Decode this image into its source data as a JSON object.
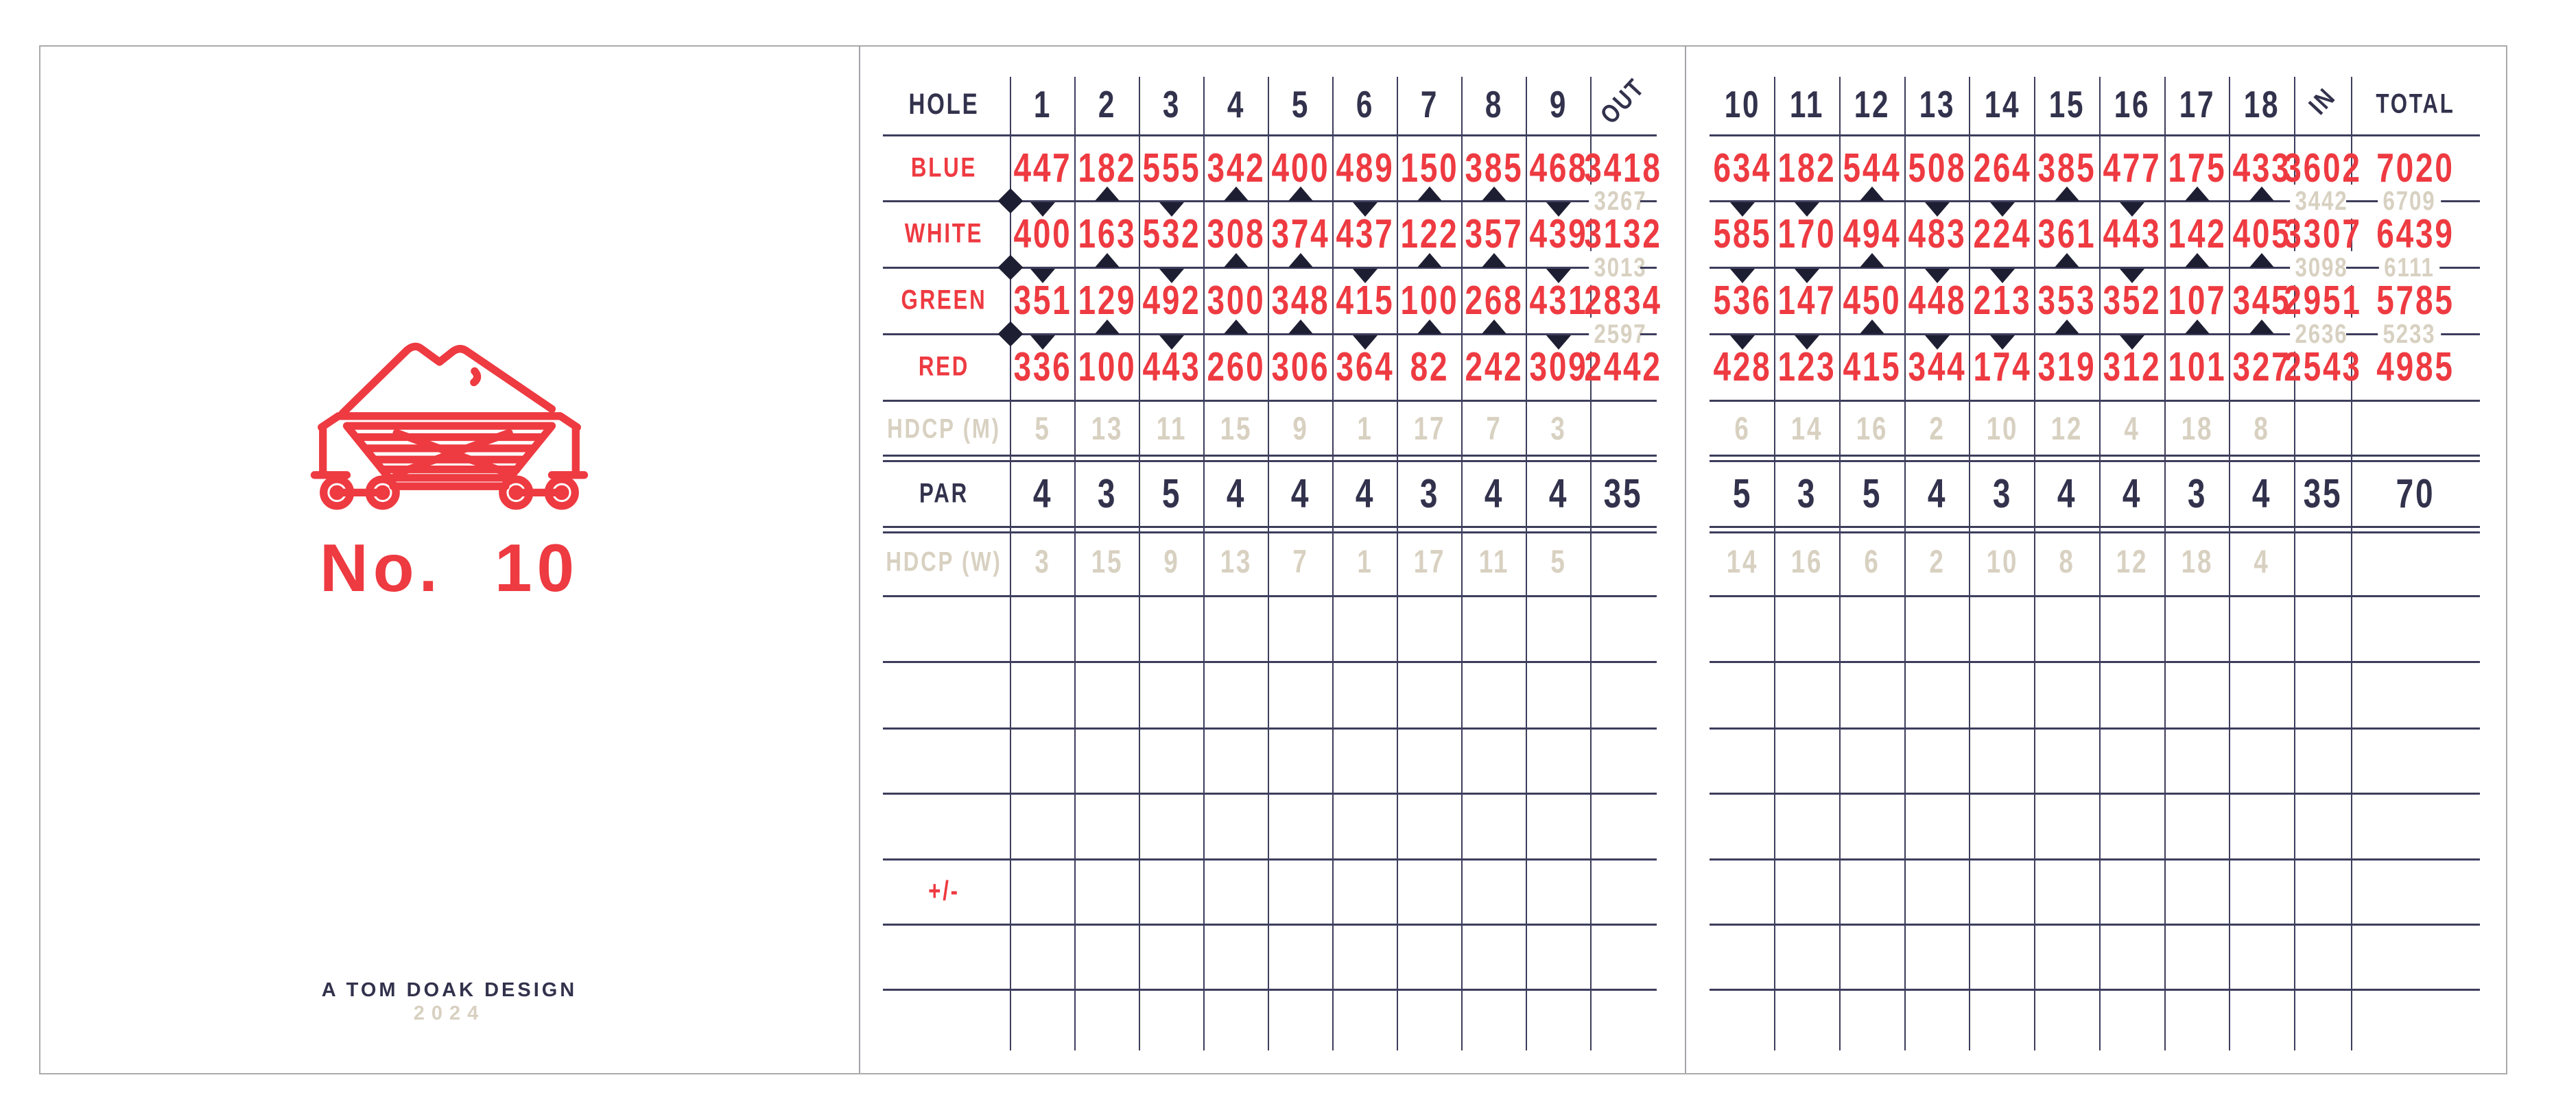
{
  "card": {
    "logo": {
      "icon": "ore-cart-icon",
      "title": "No. 10",
      "credit": "A TOM DOAK DESIGN",
      "year": "2024"
    },
    "colors": {
      "red": "#ee3a41",
      "navy": "#32324d",
      "beige": "#d8d1c1",
      "line": "#3d3d5c",
      "border": "#ababab"
    }
  },
  "front": {
    "header": {
      "label": "HOLE",
      "holes": [
        "1",
        "2",
        "3",
        "4",
        "5",
        "6",
        "7",
        "8",
        "9"
      ],
      "summary": [
        "OUT"
      ]
    },
    "rows": [
      {
        "id": "blue",
        "label": "BLUE",
        "ink": "red",
        "values": [
          "447",
          "182",
          "555",
          "342",
          "400",
          "489",
          "150",
          "385",
          "468"
        ],
        "summary": [
          "3418"
        ]
      },
      {
        "id": "white",
        "label": "WHITE",
        "ink": "red",
        "values": [
          "400",
          "163",
          "532",
          "308",
          "374",
          "437",
          "122",
          "357",
          "439"
        ],
        "summary": [
          "3132"
        ]
      },
      {
        "id": "green",
        "label": "GREEN",
        "ink": "red",
        "values": [
          "351",
          "129",
          "492",
          "300",
          "348",
          "415",
          "100",
          "268",
          "431"
        ],
        "summary": [
          "2834"
        ]
      },
      {
        "id": "red",
        "label": "RED",
        "ink": "red",
        "values": [
          "336",
          "100",
          "443",
          "260",
          "306",
          "364",
          "82",
          "242",
          "309"
        ],
        "summary": [
          "2442"
        ]
      },
      {
        "id": "hdcp_m",
        "label": "HDCP (M)",
        "ink": "beige",
        "values": [
          "5",
          "13",
          "11",
          "15",
          "9",
          "1",
          "17",
          "7",
          "3"
        ],
        "summary": [
          ""
        ]
      },
      {
        "id": "par",
        "label": "PAR",
        "ink": "navy",
        "values": [
          "4",
          "3",
          "5",
          "4",
          "4",
          "4",
          "3",
          "4",
          "4"
        ],
        "summary": [
          "35"
        ]
      },
      {
        "id": "hdcp_w",
        "label": "HDCP (W)",
        "ink": "beige",
        "values": [
          "3",
          "15",
          "9",
          "13",
          "7",
          "1",
          "17",
          "11",
          "5"
        ],
        "summary": [
          ""
        ]
      }
    ],
    "dividers": [
      {
        "after": "blue",
        "combined": [
          "3267"
        ]
      },
      {
        "after": "white",
        "combined": [
          "3013"
        ]
      },
      {
        "after": "green",
        "combined": [
          "2597"
        ]
      }
    ],
    "tee_markers": [
      "down",
      "up",
      "down",
      "up",
      "up",
      "down",
      "up",
      "up",
      "down"
    ],
    "plus_minus": "+/-"
  },
  "back": {
    "header": {
      "holes": [
        "10",
        "11",
        "12",
        "13",
        "14",
        "15",
        "16",
        "17",
        "18"
      ],
      "summary": [
        "IN",
        "TOTAL"
      ]
    },
    "rows": [
      {
        "id": "blue",
        "ink": "red",
        "values": [
          "634",
          "182",
          "544",
          "508",
          "264",
          "385",
          "477",
          "175",
          "433"
        ],
        "summary": [
          "3602",
          "7020"
        ]
      },
      {
        "id": "white",
        "ink": "red",
        "values": [
          "585",
          "170",
          "494",
          "483",
          "224",
          "361",
          "443",
          "142",
          "405"
        ],
        "summary": [
          "3307",
          "6439"
        ]
      },
      {
        "id": "green",
        "ink": "red",
        "values": [
          "536",
          "147",
          "450",
          "448",
          "213",
          "353",
          "352",
          "107",
          "345"
        ],
        "summary": [
          "2951",
          "5785"
        ]
      },
      {
        "id": "red",
        "ink": "red",
        "values": [
          "428",
          "123",
          "415",
          "344",
          "174",
          "319",
          "312",
          "101",
          "327"
        ],
        "summary": [
          "2543",
          "4985"
        ]
      },
      {
        "id": "hdcp_m",
        "ink": "beige",
        "values": [
          "6",
          "14",
          "16",
          "2",
          "10",
          "12",
          "4",
          "18",
          "8"
        ],
        "summary": [
          "",
          ""
        ]
      },
      {
        "id": "par",
        "ink": "navy",
        "values": [
          "5",
          "3",
          "5",
          "4",
          "3",
          "4",
          "4",
          "3",
          "4"
        ],
        "summary": [
          "35",
          "70"
        ]
      },
      {
        "id": "hdcp_w",
        "ink": "beige",
        "values": [
          "14",
          "16",
          "6",
          "2",
          "10",
          "8",
          "12",
          "18",
          "4"
        ],
        "summary": [
          "",
          ""
        ]
      }
    ],
    "dividers": [
      {
        "after": "blue",
        "combined": [
          "3442",
          "6709"
        ]
      },
      {
        "after": "white",
        "combined": [
          "3098",
          "6111"
        ]
      },
      {
        "after": "green",
        "combined": [
          "2636",
          "5233"
        ]
      }
    ],
    "tee_markers": [
      "down",
      "down",
      "up",
      "down",
      "down",
      "up",
      "down",
      "up",
      "up"
    ]
  }
}
